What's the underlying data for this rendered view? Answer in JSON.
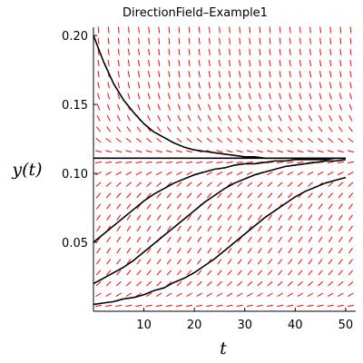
{
  "chart_data": {
    "type": "line",
    "title": "DirectionField–Example1",
    "xlabel": "t",
    "ylabel": "y(t)",
    "xlim": [
      0,
      52
    ],
    "ylim": [
      0,
      0.206
    ],
    "x_ticks": [
      10,
      20,
      30,
      40,
      50
    ],
    "x_tick_labels": [
      "10",
      "20",
      "30",
      "40",
      "50"
    ],
    "y_ticks": [
      0.05,
      0.1,
      0.15,
      0.2
    ],
    "y_tick_labels": [
      "0.05",
      "0.10",
      "0.15",
      "0.20"
    ],
    "grid": false,
    "legend": "none",
    "field": {
      "color": "#ff0000",
      "equilibrium": 0.111,
      "t_samples": [
        1,
        3,
        5,
        7,
        9,
        11,
        13,
        15,
        17,
        19,
        21,
        23,
        25,
        27,
        29,
        31,
        33,
        35,
        37,
        39,
        41,
        43,
        45,
        47,
        49,
        51
      ],
      "y_samples": [
        0.004,
        0.012,
        0.02,
        0.028,
        0.036,
        0.044,
        0.052,
        0.06,
        0.068,
        0.076,
        0.084,
        0.092,
        0.1,
        0.108,
        0.116,
        0.124,
        0.132,
        0.14,
        0.148,
        0.156,
        0.164,
        0.172,
        0.18,
        0.188,
        0.196,
        0.204
      ]
    },
    "series": [
      {
        "color": "#000000",
        "x": [
          0,
          2,
          4,
          6,
          8,
          10,
          12,
          14,
          16,
          18,
          20,
          22,
          24,
          26,
          28,
          30,
          32,
          34,
          36,
          38,
          40,
          42,
          44,
          46,
          48,
          50
        ],
        "values": [
          0.2,
          0.181,
          0.165,
          0.153,
          0.144,
          0.136,
          0.13,
          0.126,
          0.122,
          0.119,
          0.117,
          0.116,
          0.115,
          0.114,
          0.113,
          0.112,
          0.112,
          0.111,
          0.111,
          0.111,
          0.111,
          0.111,
          0.111,
          0.111,
          0.111,
          0.111
        ]
      },
      {
        "color": "#000000",
        "x": [
          0,
          50
        ],
        "values": [
          0.111,
          0.111
        ]
      },
      {
        "color": "#000000",
        "x": [
          0,
          2,
          4,
          6,
          8,
          10,
          12,
          14,
          16,
          18,
          20,
          22,
          24,
          26,
          28,
          30,
          32,
          34,
          36,
          38,
          40,
          42,
          44,
          46,
          48,
          50
        ],
        "values": [
          0.05,
          0.056,
          0.062,
          0.068,
          0.074,
          0.08,
          0.085,
          0.089,
          0.093,
          0.096,
          0.099,
          0.101,
          0.103,
          0.104,
          0.106,
          0.107,
          0.107,
          0.108,
          0.109,
          0.109,
          0.11,
          0.11,
          0.11,
          0.11,
          0.111,
          0.111
        ]
      },
      {
        "color": "#000000",
        "x": [
          0,
          2,
          4,
          6,
          8,
          10,
          12,
          14,
          16,
          18,
          20,
          22,
          24,
          26,
          28,
          30,
          32,
          34,
          36,
          38,
          40,
          42,
          44,
          46,
          48,
          50
        ],
        "values": [
          0.02,
          0.024,
          0.028,
          0.032,
          0.037,
          0.043,
          0.049,
          0.055,
          0.061,
          0.067,
          0.073,
          0.079,
          0.084,
          0.089,
          0.093,
          0.096,
          0.099,
          0.101,
          0.103,
          0.105,
          0.106,
          0.107,
          0.108,
          0.109,
          0.109,
          0.11
        ]
      },
      {
        "color": "#000000",
        "x": [
          0,
          2,
          4,
          6,
          8,
          10,
          12,
          14,
          16,
          18,
          20,
          22,
          24,
          26,
          28,
          30,
          32,
          34,
          36,
          38,
          40,
          42,
          44,
          46,
          48,
          50
        ],
        "values": [
          0.005,
          0.006,
          0.007,
          0.009,
          0.01,
          0.012,
          0.015,
          0.017,
          0.021,
          0.024,
          0.028,
          0.033,
          0.038,
          0.044,
          0.05,
          0.056,
          0.062,
          0.068,
          0.073,
          0.078,
          0.083,
          0.087,
          0.09,
          0.093,
          0.095,
          0.097
        ]
      }
    ]
  }
}
